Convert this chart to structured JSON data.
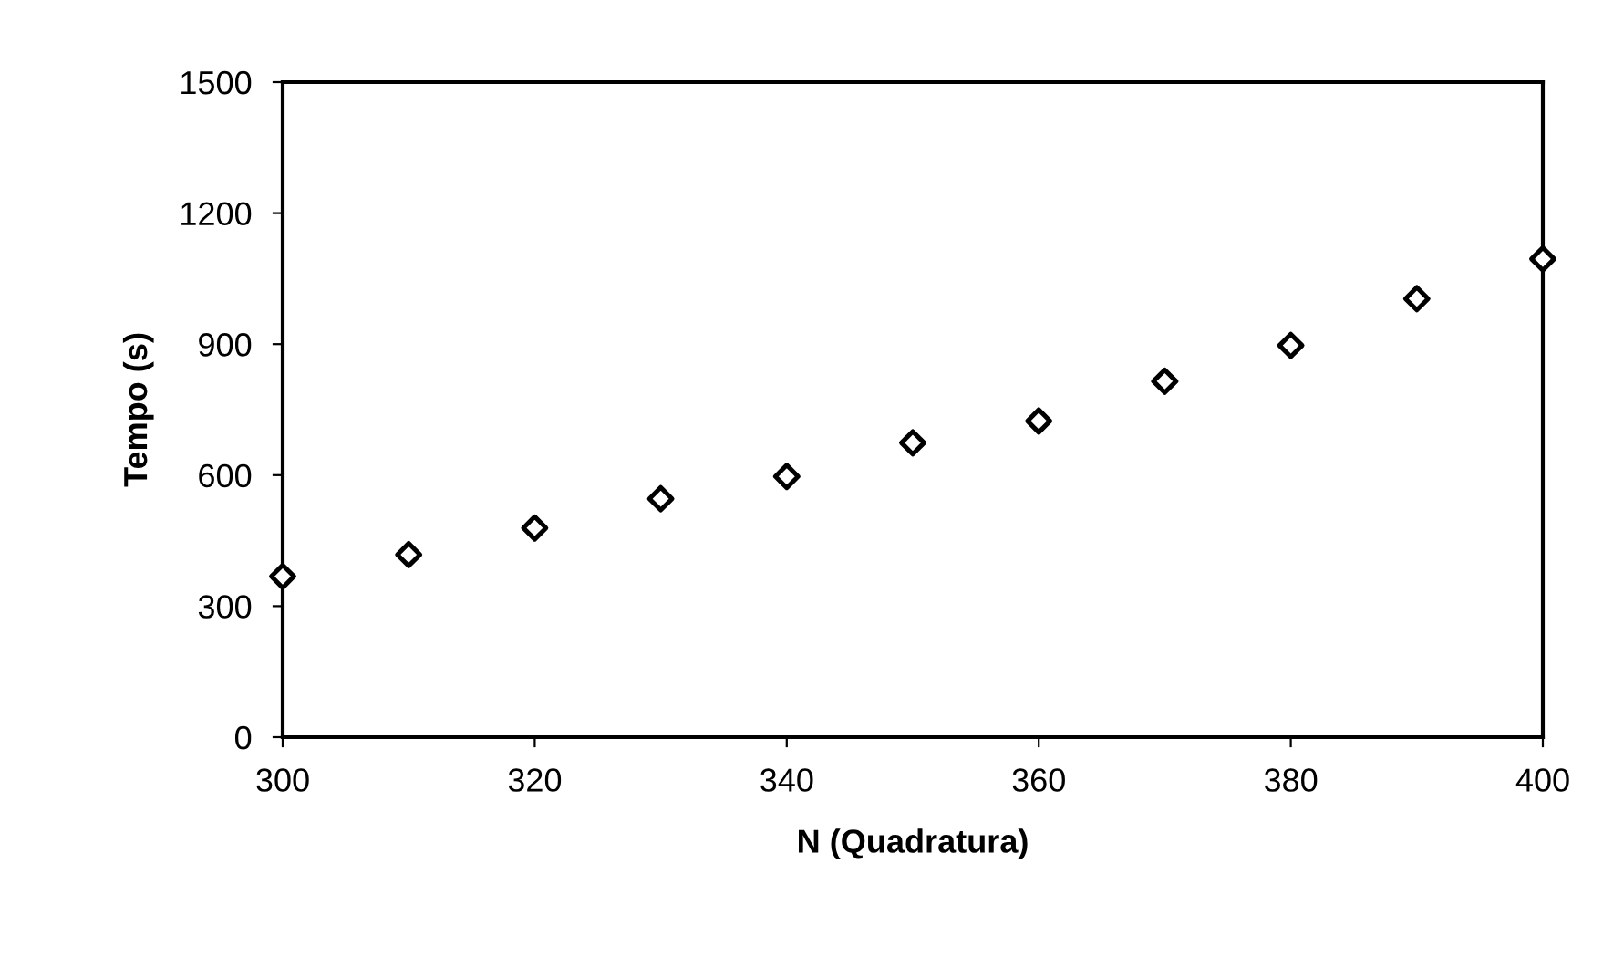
{
  "chart_data": {
    "type": "scatter",
    "xlabel": "N (Quadratura)",
    "ylabel": "Tempo (s)",
    "x": [
      300,
      310,
      320,
      330,
      340,
      350,
      360,
      370,
      380,
      390,
      400
    ],
    "series": [
      {
        "color": "#000000",
        "values": [
          368,
          418,
          479,
          546,
          597,
          674,
          724,
          815,
          897,
          1004,
          1095
        ]
      }
    ],
    "marker": "diamond",
    "xlim": [
      300,
      400
    ],
    "xticks": [
      300,
      320,
      340,
      360,
      380,
      400
    ],
    "ylim": [
      0,
      1500
    ],
    "yticks": [
      0,
      300,
      600,
      900,
      1200,
      1500
    ],
    "grid": false,
    "legend": false
  }
}
